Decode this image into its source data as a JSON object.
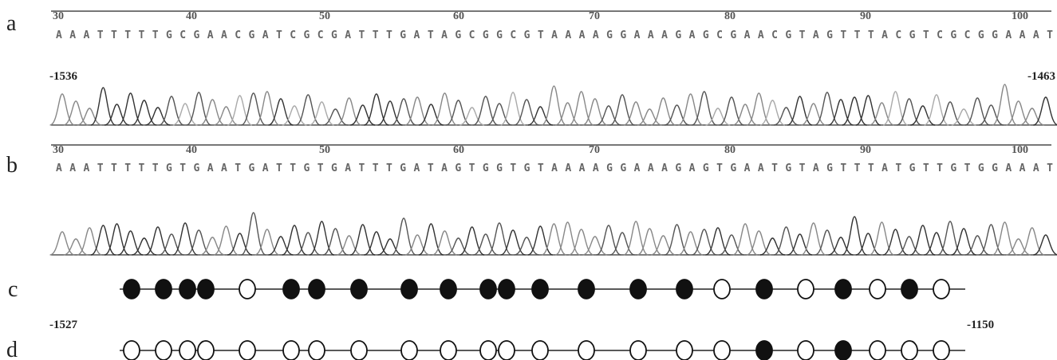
{
  "panels": {
    "a": {
      "label": "a",
      "ticks": [
        "30",
        "40",
        "50",
        "60",
        "70",
        "80",
        "90",
        "100"
      ],
      "sequence": "AAATTTTTGCGAACGATCGCGATTTGATAGCGGCGTAAAAGGAAAGAGCGAACGTAGTTTACGTCGCGGAAAT",
      "start": "-1536",
      "end": "-1463"
    },
    "b": {
      "label": "b",
      "ticks": [
        "30",
        "40",
        "50",
        "60",
        "70",
        "80",
        "90",
        "100"
      ],
      "sequence": "AAATTTTTGTGAATGATTGTGATTTGATAGTGGTGTAAAAGGAAAGAGTGAATGTAGTTTATGTTGTGGAAAT"
    },
    "c": {
      "label": "c",
      "methylated": [
        true,
        true,
        true,
        true,
        false,
        true,
        true,
        true,
        true,
        true,
        true,
        true,
        true,
        true,
        true,
        true,
        false,
        true,
        false,
        true,
        false,
        true,
        false
      ]
    },
    "d": {
      "label": "d",
      "start": "-1527",
      "end": "-1150",
      "methylated": [
        false,
        false,
        false,
        false,
        false,
        false,
        false,
        false,
        false,
        false,
        false,
        false,
        false,
        false,
        false,
        false,
        false,
        true,
        false,
        true,
        false,
        false,
        false
      ]
    }
  }
}
